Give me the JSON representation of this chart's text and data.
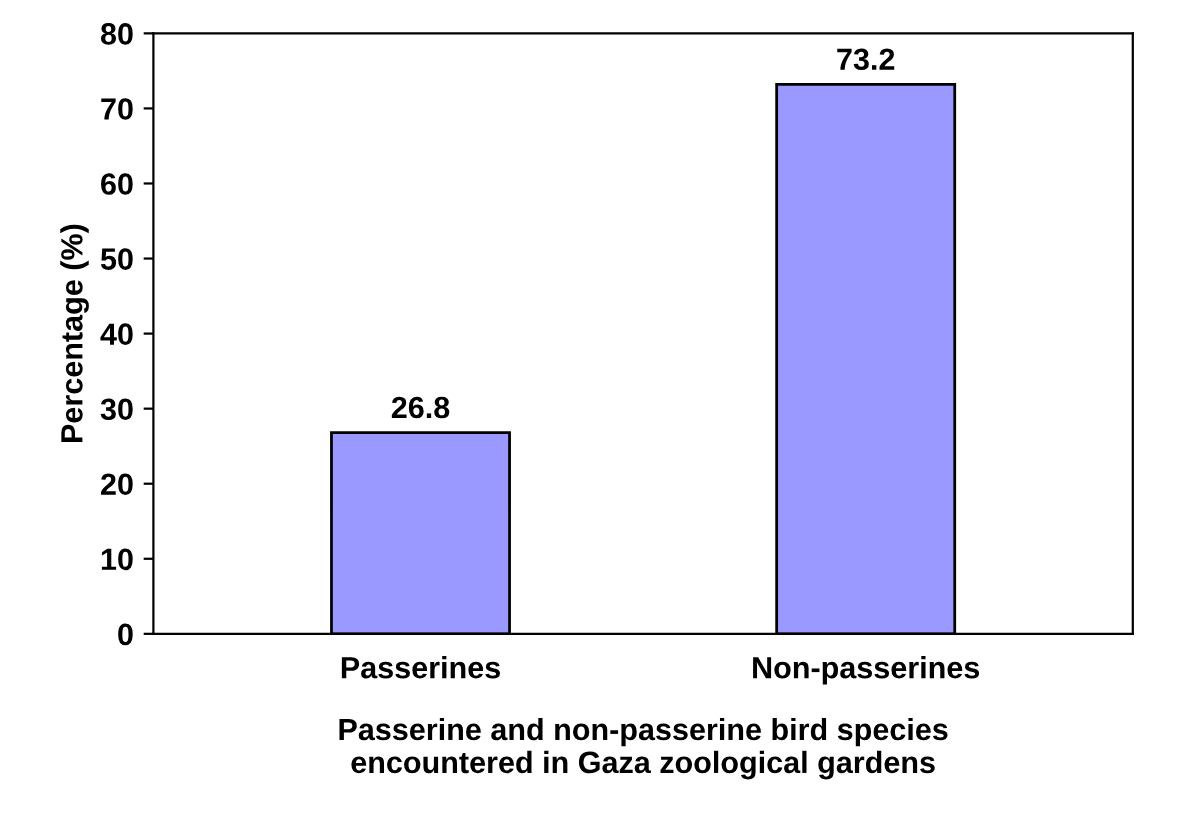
{
  "chart_data": {
    "type": "bar",
    "categories": [
      "Passerines",
      "Non-passerines"
    ],
    "values": [
      26.8,
      73.2
    ],
    "color": "#9999ff",
    "ylabel": "Percentage (%)",
    "xlabel": "Passerine and non-passerine bird species\nencountered in Gaza zoological gardens",
    "ylim": [
      0,
      80
    ],
    "yticks": [
      0,
      10,
      20,
      30,
      40,
      50,
      60,
      70,
      80
    ],
    "data_labels": true,
    "grid": false
  }
}
